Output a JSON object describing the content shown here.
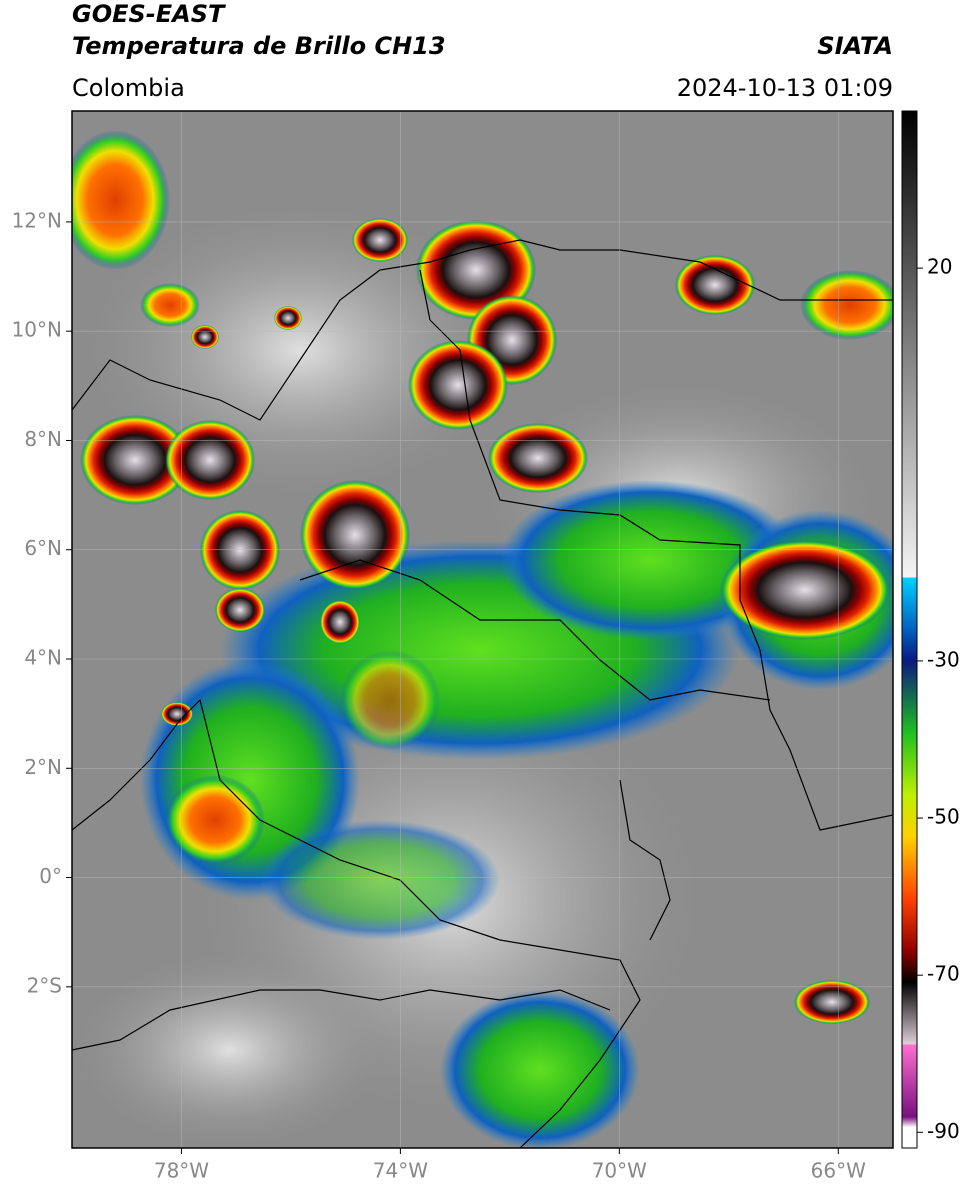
{
  "header": {
    "title": "GOES-EAST",
    "subtitle": "Temperatura de Brillo CH13",
    "source": "SIATA",
    "region": "Colombia",
    "datetime": "2024-10-13 01:09"
  },
  "map": {
    "lonlim": [
      -80,
      -65
    ],
    "latlim": [
      -4.95,
      14.03
    ],
    "lon_ticks": [
      {
        "value": -78,
        "label": "78°W"
      },
      {
        "value": -74,
        "label": "74°W"
      },
      {
        "value": -70,
        "label": "70°W"
      },
      {
        "value": -66,
        "label": "66°W"
      }
    ],
    "lat_ticks": [
      {
        "value": 12,
        "label": "12°N"
      },
      {
        "value": 10,
        "label": "10°N"
      },
      {
        "value": 8,
        "label": "8°N"
      },
      {
        "value": 6,
        "label": "6°N"
      },
      {
        "value": 4,
        "label": "4°N"
      },
      {
        "value": 2,
        "label": "2°N"
      },
      {
        "value": 0,
        "label": "0°"
      },
      {
        "value": -2,
        "label": "2°S"
      }
    ]
  },
  "colorbar": {
    "lim": [
      -92,
      40
    ],
    "ticks": [
      20,
      -30,
      -50,
      -70,
      -90
    ]
  }
}
